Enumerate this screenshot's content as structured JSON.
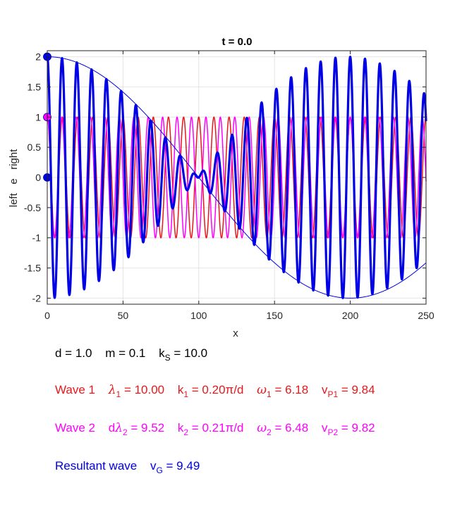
{
  "chart_data": {
    "type": "line",
    "title": "t = 0.0",
    "xlabel": "x",
    "ylabel": "left   e   right",
    "xlim": [
      0,
      250
    ],
    "ylim": [
      -2.1,
      2.1
    ],
    "xticks": [
      0,
      50,
      100,
      150,
      200,
      250
    ],
    "yticks": [
      -2,
      -1.5,
      -1,
      -0.5,
      0,
      0.5,
      1,
      1.5,
      2
    ],
    "grid": true,
    "params": {
      "d": 1.0,
      "m": 0.1,
      "kS": 10.0
    },
    "series": [
      {
        "wave": 1,
        "color": "#e8171b",
        "x_range": [
          0,
          250
        ],
        "lambda": 10.0,
        "amplitude": 1,
        "style": "thin"
      },
      {
        "wave": 2,
        "color": "#ff00ff",
        "x_range": [
          0,
          250
        ],
        "lambda": 9.52,
        "amplitude": 1,
        "style": "thin"
      },
      {
        "wave": "resultant",
        "color": "#0000e6",
        "x_range": [
          0,
          250
        ],
        "components": [
          1,
          2
        ],
        "style": "thick"
      },
      {
        "wave": "envelope",
        "color": "#0000e6",
        "x_range": [
          0,
          250
        ],
        "amplitude": 2,
        "envelope_wavelength": 400,
        "style": "thin"
      }
    ],
    "markers": [
      {
        "x": 0,
        "y": 1,
        "color": "#ff00ff"
      },
      {
        "x": 0,
        "y": 0,
        "color": "#0000e6"
      },
      {
        "x": 0,
        "y": 2,
        "color": "#0000e6"
      }
    ]
  },
  "info": {
    "line1": {
      "d": "d = 1.0",
      "m": "m = 0.1",
      "ks_pre": "k",
      "ks_sub": "S",
      "ks_post": " = 10.0"
    },
    "wave1": {
      "label": "Wave 1",
      "lam_sym": "λ",
      "lam_sub": "1",
      "lam_val": " = 10.00",
      "k_pre": "k",
      "k_sub": "1",
      "k_val": " = 0.20π/d",
      "w_sym": "ω",
      "w_sub": "1",
      "w_val": " = 6.18",
      "v_pre": "v",
      "v_sub": "P1",
      "v_val": " = 9.84"
    },
    "wave2": {
      "label": "Wave 2",
      "lam_pre": "d",
      "lam_sym": "λ",
      "lam_sub": "2",
      "lam_val": " = 9.52",
      "k_pre": "k",
      "k_sub": "2",
      "k_val": " = 0.21π/d",
      "w_sym": "ω",
      "w_sub": "2",
      "w_val": " = 6.48",
      "v_pre": "v",
      "v_sub": "P2",
      "v_val": " = 9.82"
    },
    "resultant": {
      "label": "Resultant wave",
      "v_pre": "v",
      "v_sub": "G",
      "v_val": " = 9.49"
    }
  },
  "colors": {
    "wave1": "#e8171b",
    "wave2": "#ff00ff",
    "resultant": "#0000e6",
    "text": "#000000"
  }
}
